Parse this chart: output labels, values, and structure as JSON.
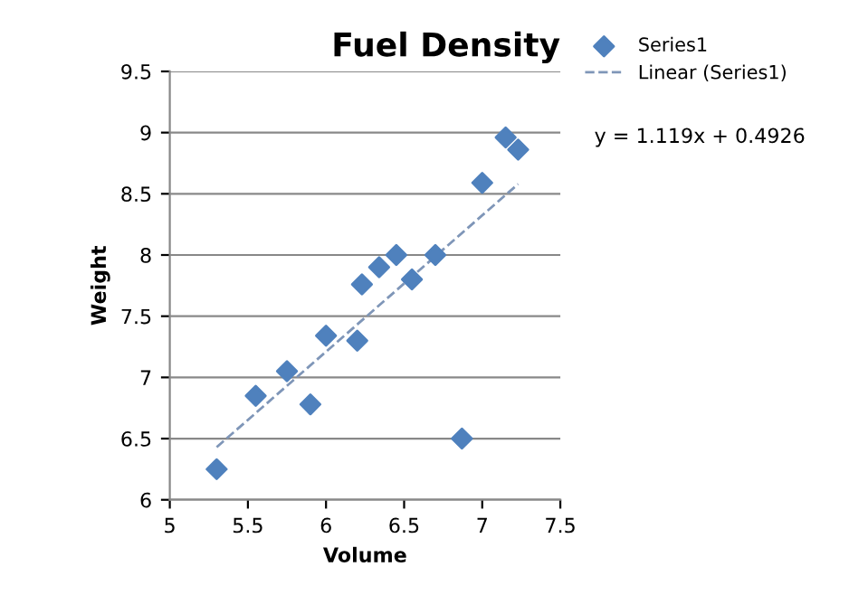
{
  "chart_data": {
    "type": "scatter",
    "title": "Fuel Density",
    "xlabel": "Volume",
    "ylabel": "Weight",
    "annotations": [
      "y = 1.119x + 0.4926"
    ],
    "series": [
      {
        "name": "Series1",
        "color": "#4f81bd",
        "marker": "diamond",
        "x": [
          5.3,
          5.55,
          5.75,
          5.9,
          6.0,
          6.2,
          6.23,
          6.34,
          6.45,
          6.55,
          6.7,
          6.87,
          7.0,
          7.15,
          7.23
        ],
        "values": [
          6.25,
          6.85,
          7.05,
          6.78,
          7.34,
          7.3,
          7.76,
          7.9,
          8.0,
          7.8,
          8.0,
          6.5,
          8.59,
          8.96,
          8.86
        ]
      },
      {
        "name": "Linear (Series1)",
        "type": "line",
        "color": "#7f96b8",
        "line_style": "dashed",
        "x": [
          5.3,
          7.23
        ],
        "values": [
          6.43,
          8.58
        ]
      }
    ],
    "xlim": [
      5,
      7.5
    ],
    "xticks": [
      5,
      5.5,
      6,
      6.5,
      7,
      7.5
    ],
    "ylim": [
      6,
      9.5
    ],
    "yticks": [
      6,
      6.5,
      7,
      7.5,
      8,
      8.5,
      9,
      9.5
    ],
    "grid": "y",
    "legend": "top right"
  }
}
